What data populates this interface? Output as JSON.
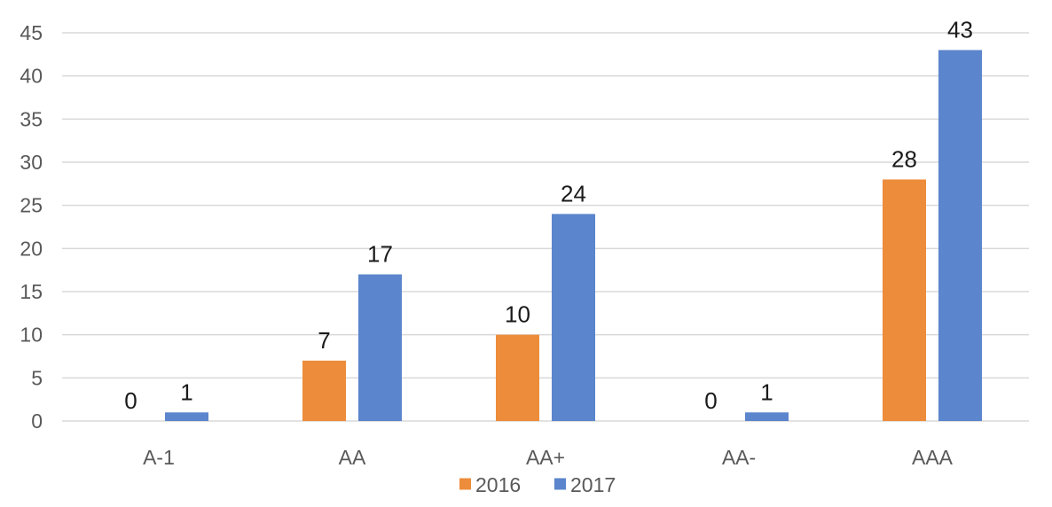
{
  "chart_data": {
    "type": "bar",
    "title": "",
    "xlabel": "",
    "ylabel": "",
    "categories": [
      "A-1",
      "AA",
      "AA+",
      "AA-",
      "AAA"
    ],
    "series": [
      {
        "name": "2016",
        "values": [
          0,
          7,
          10,
          0,
          28
        ],
        "color": "#ED8C3A"
      },
      {
        "name": "2017",
        "values": [
          1,
          17,
          24,
          1,
          43
        ],
        "color": "#5B85CC"
      }
    ],
    "ylim": [
      0,
      45
    ],
    "yticks": [
      0,
      5,
      10,
      15,
      20,
      25,
      30,
      35,
      40,
      45
    ],
    "grid": true,
    "legend": "bottom",
    "data_labels": true,
    "colors": {
      "grid": "#d9d9d9",
      "axis_text": "#595959",
      "label_text": "#1a1a1a"
    }
  }
}
